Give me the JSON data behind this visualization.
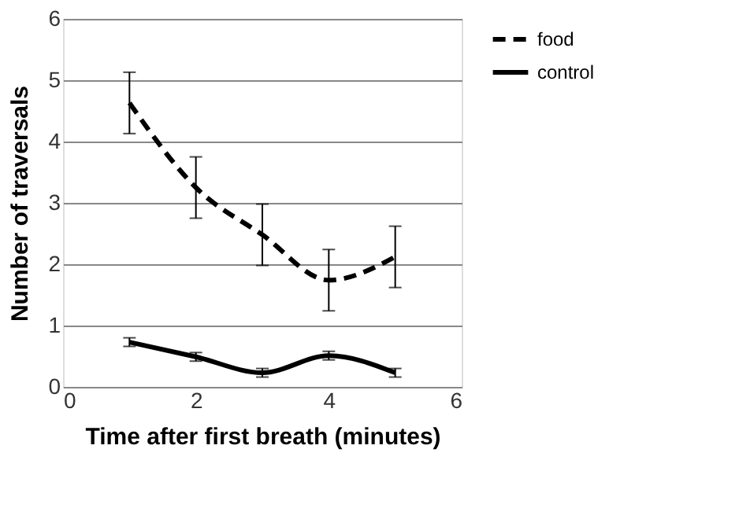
{
  "chart_data": {
    "type": "line",
    "xlabel": "Time after first breath (minutes)",
    "ylabel": "Number of traversals",
    "x": [
      1,
      2,
      3,
      4,
      5
    ],
    "xlim": [
      0,
      6
    ],
    "xticks": [
      0,
      2,
      4,
      6
    ],
    "ylim": [
      0,
      6
    ],
    "yticks": [
      0,
      1,
      2,
      3,
      4,
      5,
      6
    ],
    "grid": "y",
    "legend": "right",
    "series": [
      {
        "name": "food",
        "color": "#000000",
        "line_style": "dashed",
        "values": [
          4.63,
          3.25,
          2.48,
          1.74,
          2.12
        ],
        "errors": [
          0.5,
          0.5,
          0.5,
          0.5,
          0.5
        ]
      },
      {
        "name": "control",
        "color": "#000000",
        "line_style": "solid",
        "values": [
          0.73,
          0.49,
          0.23,
          0.51,
          0.23
        ],
        "errors": [
          0.07,
          0.07,
          0.07,
          0.07,
          0.07
        ]
      }
    ]
  }
}
